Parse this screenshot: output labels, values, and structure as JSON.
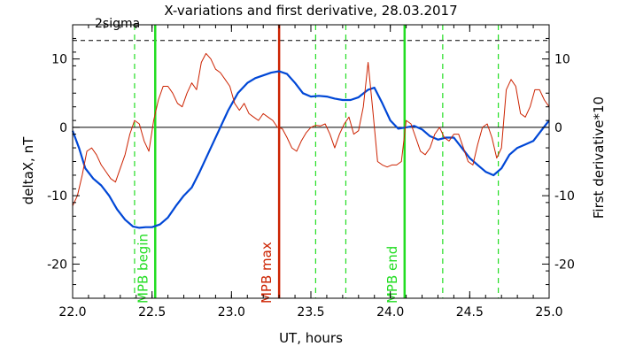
{
  "chart_data": {
    "type": "line",
    "title": "X-variations and first derivative, 28.03.2017",
    "xlabel": "UT, hours",
    "ylabel_left": "deltaX, nT",
    "ylabel_right": "First derivative*10",
    "xlim": [
      22.0,
      25.0
    ],
    "ylim": [
      -25,
      15
    ],
    "x_ticks": [
      "22.0",
      "22.5",
      "23.0",
      "23.5",
      "24.0",
      "24.5",
      "25.0"
    ],
    "y_ticks_left": [
      "-20",
      "-10",
      "0",
      "10"
    ],
    "y_ticks_right": [
      "-20",
      "-10",
      "0",
      "10"
    ],
    "grid": false,
    "sigma_label": "2sigma",
    "sigma_level": 12.7,
    "zero_line": 0,
    "colors": {
      "deltaX": "#0047d6",
      "derivative": "#cc2200",
      "mpb_boundary": "#22dd22",
      "mpb_max": "#cc2200",
      "axis": "#000000",
      "left_label": "#0047d6",
      "right_label": "#cc2200"
    },
    "vertical_markers": [
      {
        "x": 22.52,
        "label": "MPB begin",
        "color": "#22dd22",
        "style": "solid"
      },
      {
        "x": 23.3,
        "label": "MPB max",
        "color": "#cc2200",
        "style": "solid"
      },
      {
        "x": 24.09,
        "label": "MPB end",
        "color": "#22dd22",
        "style": "solid"
      }
    ],
    "dashed_markers": [
      {
        "x": 22.39,
        "color": "#22dd22"
      },
      {
        "x": 23.53,
        "color": "#22dd22"
      },
      {
        "x": 23.72,
        "color": "#22dd22"
      },
      {
        "x": 24.33,
        "color": "#22dd22"
      },
      {
        "x": 24.68,
        "color": "#22dd22"
      }
    ],
    "series": [
      {
        "name": "deltaX, nT",
        "axis": "left",
        "color": "#0047d6",
        "x": [
          22.0,
          22.04,
          22.08,
          22.13,
          22.18,
          22.23,
          22.28,
          22.33,
          22.38,
          22.42,
          22.46,
          22.5,
          22.55,
          22.6,
          22.65,
          22.7,
          22.75,
          22.8,
          22.86,
          22.92,
          22.98,
          23.04,
          23.1,
          23.15,
          23.2,
          23.25,
          23.3,
          23.35,
          23.4,
          23.45,
          23.5,
          23.55,
          23.6,
          23.65,
          23.7,
          23.75,
          23.8,
          23.86,
          23.9,
          23.95,
          24.0,
          24.05,
          24.1,
          24.15,
          24.2,
          24.25,
          24.3,
          24.35,
          24.4,
          24.45,
          24.5,
          24.55,
          24.6,
          24.65,
          24.7,
          24.75,
          24.8,
          24.85,
          24.9,
          24.95,
          25.0
        ],
        "y": [
          -0.5,
          -3.0,
          -6.0,
          -7.5,
          -8.5,
          -10.0,
          -12.0,
          -13.5,
          -14.5,
          -14.7,
          -14.6,
          -14.6,
          -14.2,
          -13.2,
          -11.5,
          -10.0,
          -8.8,
          -6.5,
          -3.5,
          -0.5,
          2.5,
          5.0,
          6.5,
          7.2,
          7.6,
          8.0,
          8.2,
          7.8,
          6.5,
          5.0,
          4.5,
          4.6,
          4.5,
          4.2,
          4.0,
          4.0,
          4.4,
          5.5,
          5.8,
          3.5,
          1.0,
          -0.2,
          0.0,
          0.2,
          -0.3,
          -1.3,
          -1.8,
          -1.5,
          -1.5,
          -3.0,
          -4.5,
          -5.5,
          -6.5,
          -7.0,
          -6.0,
          -4.0,
          -3.0,
          -2.5,
          -2.0,
          -0.5,
          1.0
        ]
      },
      {
        "name": "First derivative*10",
        "axis": "right",
        "color": "#cc2200",
        "x": [
          22.0,
          22.03,
          22.06,
          22.09,
          22.12,
          22.15,
          22.18,
          22.21,
          22.24,
          22.27,
          22.3,
          22.33,
          22.36,
          22.39,
          22.42,
          22.45,
          22.48,
          22.51,
          22.54,
          22.57,
          22.6,
          22.63,
          22.66,
          22.69,
          22.72,
          22.75,
          22.78,
          22.81,
          22.84,
          22.87,
          22.9,
          22.93,
          22.96,
          22.99,
          23.02,
          23.05,
          23.08,
          23.11,
          23.14,
          23.17,
          23.2,
          23.23,
          23.26,
          23.29,
          23.32,
          23.35,
          23.38,
          23.41,
          23.44,
          23.47,
          23.5,
          23.53,
          23.56,
          23.59,
          23.62,
          23.65,
          23.68,
          23.71,
          23.74,
          23.77,
          23.8,
          23.83,
          23.86,
          23.89,
          23.92,
          23.95,
          23.98,
          24.01,
          24.04,
          24.07,
          24.1,
          24.13,
          24.16,
          24.19,
          24.22,
          24.25,
          24.28,
          24.31,
          24.34,
          24.37,
          24.4,
          24.43,
          24.46,
          24.49,
          24.52,
          24.55,
          24.58,
          24.61,
          24.64,
          24.67,
          24.7,
          24.73,
          24.76,
          24.79,
          24.82,
          24.85,
          24.88,
          24.91,
          24.94,
          24.97,
          25.0
        ],
        "y": [
          -11.5,
          -10.0,
          -7.0,
          -3.5,
          -3.0,
          -4.0,
          -5.5,
          -6.5,
          -7.5,
          -8.0,
          -6.0,
          -4.0,
          -1.0,
          1.0,
          0.5,
          -2.0,
          -3.5,
          1.0,
          4.0,
          6.0,
          6.0,
          5.0,
          3.5,
          3.0,
          5.0,
          6.5,
          5.5,
          9.5,
          10.8,
          10.0,
          8.5,
          8.0,
          7.0,
          6.0,
          3.5,
          2.5,
          3.5,
          2.0,
          1.5,
          1.0,
          2.0,
          1.5,
          1.0,
          0.0,
          -0.2,
          -1.5,
          -3.0,
          -3.5,
          -2.0,
          -0.8,
          0.0,
          0.3,
          0.2,
          0.5,
          -1.0,
          -3.0,
          -1.0,
          0.5,
          1.5,
          -1.0,
          -0.5,
          3.0,
          9.5,
          2.5,
          -5.0,
          -5.5,
          -5.8,
          -5.5,
          -5.5,
          -5.0,
          1.0,
          0.5,
          -1.5,
          -3.5,
          -4.0,
          -3.0,
          -1.0,
          0.0,
          -1.5,
          -2.0,
          -1.0,
          -1.0,
          -3.0,
          -5.0,
          -5.5,
          -2.5,
          0.0,
          0.5,
          -1.5,
          -4.5,
          -3.0,
          5.5,
          7.0,
          6.0,
          2.0,
          1.5,
          3.0,
          5.5,
          5.5,
          4.0,
          3.0
        ]
      }
    ]
  }
}
